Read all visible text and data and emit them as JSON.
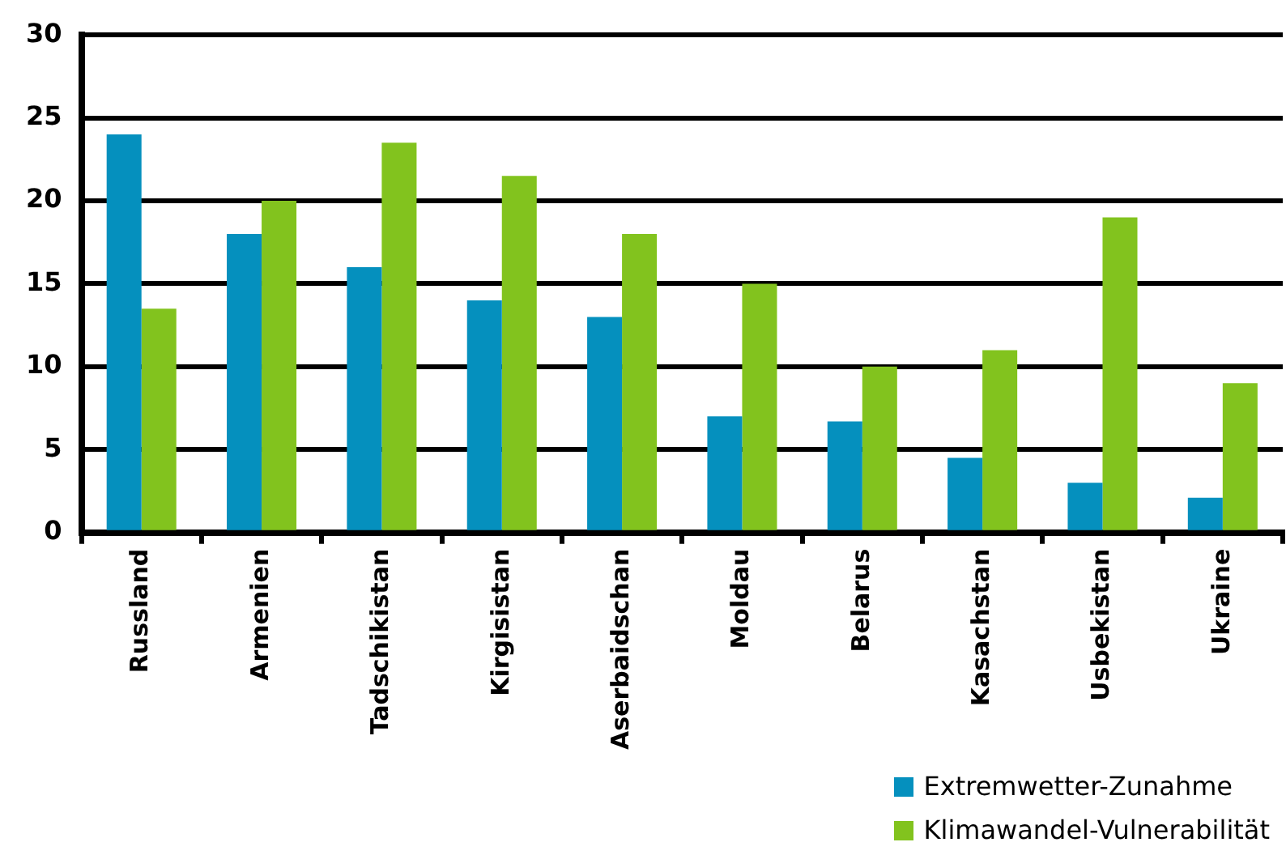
{
  "chart_data": {
    "type": "bar",
    "categories": [
      "Russland",
      "Armenien",
      "Tadschikistan",
      "Kirgisistan",
      "Aserbaidschan",
      "Moldau",
      "Belarus",
      "Kasachstan",
      "Usbekistan",
      "Ukraine"
    ],
    "series": [
      {
        "name": "Extremwetter-Zunahme",
        "color": "#0590be",
        "values": [
          24,
          18,
          16,
          14,
          13,
          7,
          6.7,
          4.5,
          3,
          2.1
        ]
      },
      {
        "name": "Klimawandel-Vulnerabilität",
        "color": "#82c31e",
        "values": [
          13.5,
          20,
          23.5,
          21.5,
          18,
          15,
          10,
          11,
          19,
          9
        ]
      }
    ],
    "ylim": [
      0,
      30
    ],
    "yticks": [
      0,
      5,
      10,
      15,
      20,
      25,
      30
    ],
    "grid": "y",
    "legend": "bottom right"
  }
}
